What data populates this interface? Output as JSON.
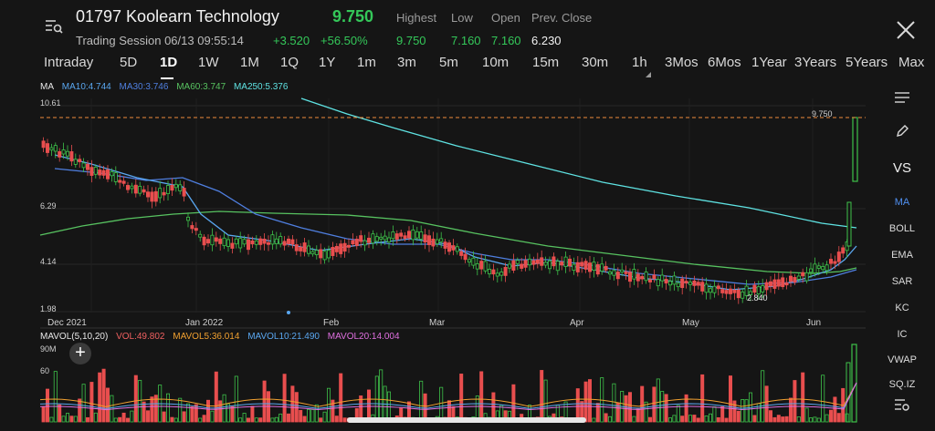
{
  "header": {
    "title": "01797 Koolearn Technology",
    "price": "9.750",
    "session": "Trading Session 06/13 09:55:14",
    "change": "+3.520",
    "change_pct": "+56.50%",
    "quote": [
      {
        "label": "Highest",
        "value": "9.750",
        "color": "#34c759"
      },
      {
        "label": "Low",
        "value": "7.160",
        "color": "#34c759"
      },
      {
        "label": "Open",
        "value": "7.160",
        "color": "#34c759"
      },
      {
        "label": "Prev. Close",
        "value": "6.230",
        "color": "#f2f2f2"
      }
    ]
  },
  "tabs": [
    "Intraday",
    "5D",
    "1D",
    "1W",
    "1M",
    "1Q",
    "1Y",
    "1m",
    "3m",
    "5m",
    "10m",
    "15m",
    "30m",
    "1h",
    "3Mos",
    "6Mos",
    "1Year",
    "3Years",
    "5Years",
    "Max"
  ],
  "active_tab": "1D",
  "indicators": {
    "ma": [
      {
        "text": "MA",
        "color": "#e8e8e8"
      },
      {
        "text": "MA10:4.744",
        "color": "#5aa7f0"
      },
      {
        "text": "MA30:3.746",
        "color": "#4f7fe0"
      },
      {
        "text": "MA60:3.747",
        "color": "#57c260"
      },
      {
        "text": "MA250:5.376",
        "color": "#5fe3e3"
      }
    ],
    "vol": [
      {
        "text": "MAVOL(5,10,20)",
        "color": "#e8e8e8"
      },
      {
        "text": "VOL:49.802",
        "color": "#f06060"
      },
      {
        "text": "MAVOL5:36.014",
        "color": "#f0a030"
      },
      {
        "text": "MAVOL10:21.490",
        "color": "#5aa7f0"
      },
      {
        "text": "MAVOL20:14.004",
        "color": "#e070e0"
      }
    ]
  },
  "sidebar": {
    "vs": "VS",
    "items": [
      "MA",
      "BOLL",
      "EMA",
      "SAR",
      "KC",
      "IC",
      "VWAP",
      "SQ.IZ"
    ]
  },
  "chart_data": {
    "type": "candlestick",
    "price_axis": [
      "10.61",
      "6.29",
      "4.14",
      "1.98"
    ],
    "volume_axis": [
      "90M",
      "60"
    ],
    "x_labels": [
      "Dec 2021",
      "Jan 2022",
      "Feb",
      "Mar",
      "Apr",
      "May",
      "Jun"
    ],
    "annotations": {
      "high": "9.750",
      "low": "2.840"
    },
    "ylim": [
      1.98,
      10.61
    ],
    "colors": {
      "up": "#3ec24a",
      "down": "#e84e4e",
      "ma10": "#5aa7f0",
      "ma30": "#4f7fe0",
      "ma60": "#57c260",
      "ma250": "#5fe3e3",
      "ref": "#f08a3c"
    }
  }
}
